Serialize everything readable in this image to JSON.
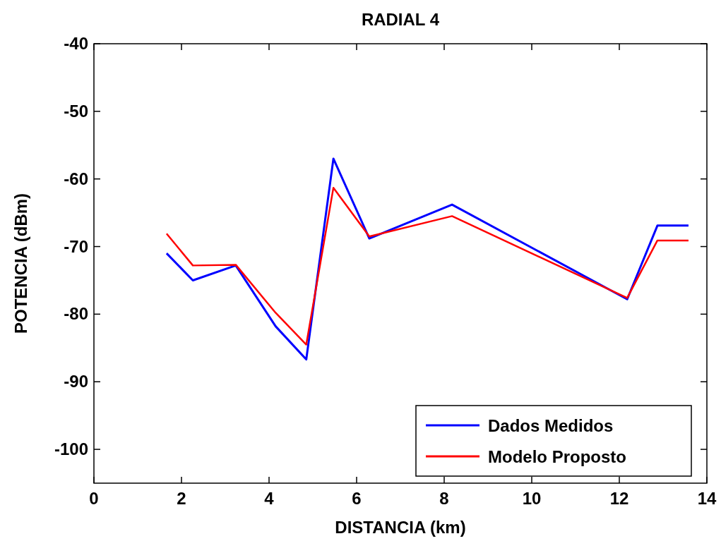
{
  "chart_data": {
    "type": "line",
    "title": "RADIAL 4",
    "xlabel": "DISTANCIA (km)",
    "ylabel": "POTENCIA (dBm)",
    "x": [
      1.66,
      2.26,
      3.24,
      4.15,
      4.85,
      5.47,
      6.29,
      8.18,
      12.18,
      12.87,
      13.58
    ],
    "series": [
      {
        "name": "Dados Medidos",
        "color": "#0000ff",
        "values": [
          -71.0,
          -75.0,
          -72.8,
          -81.8,
          -86.7,
          -57.0,
          -68.8,
          -63.8,
          -77.8,
          -66.9,
          -66.9
        ]
      },
      {
        "name": "Modelo Proposto",
        "color": "#ff0000",
        "values": [
          -68.1,
          -72.8,
          -72.7,
          -79.8,
          -84.5,
          -61.3,
          -68.5,
          -65.5,
          -77.6,
          -69.1,
          -69.1
        ]
      }
    ],
    "xlim": [
      0,
      14
    ],
    "xticks": [
      0,
      2,
      4,
      6,
      8,
      10,
      12,
      14
    ],
    "ylim": [
      -105,
      -40
    ],
    "yticks": [
      -40,
      -50,
      -60,
      -70,
      -80,
      -90,
      -100
    ],
    "grid": false,
    "legend": "bottom right",
    "line_style": "solid",
    "marker": "none"
  }
}
